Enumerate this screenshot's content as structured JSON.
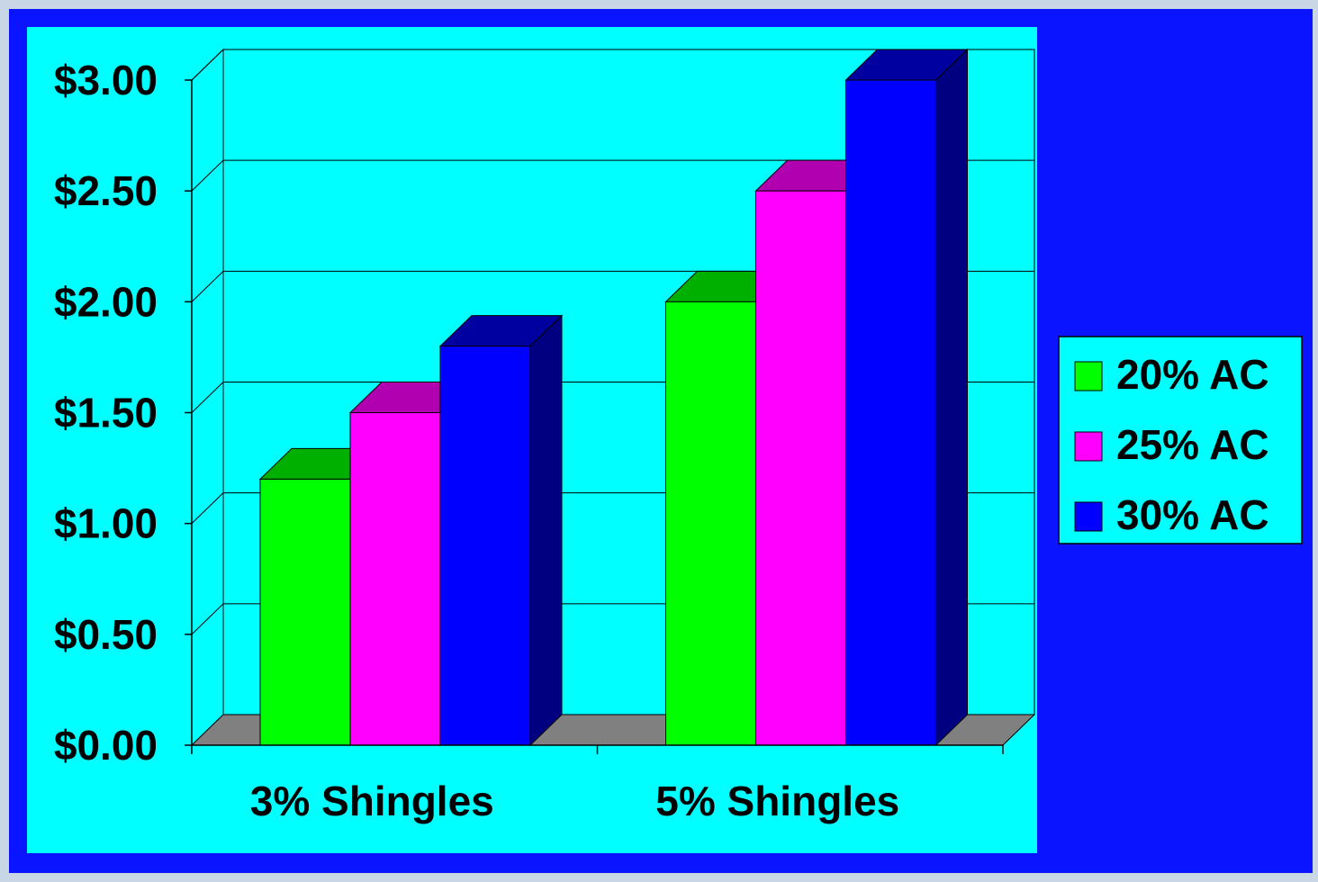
{
  "colors": {
    "frame": "#0a14ff",
    "plot_bg": "#00ffff",
    "floor": "#808080",
    "series_front": [
      "#00ff00",
      "#ff00ff",
      "#0000ff"
    ],
    "series_top": [
      "#00b000",
      "#b000b0",
      "#0000a0"
    ],
    "series_side": [
      "#008000",
      "#800080",
      "#000080"
    ]
  },
  "chart_data": {
    "type": "bar",
    "categories": [
      "3% Shingles",
      "5% Shingles"
    ],
    "series": [
      {
        "name": "20% AC",
        "values": [
          1.2,
          2.0
        ]
      },
      {
        "name": "25% AC",
        "values": [
          1.5,
          2.5
        ]
      },
      {
        "name": "30% AC",
        "values": [
          1.8,
          3.0
        ]
      }
    ],
    "ylim": [
      0,
      3
    ],
    "yticks": [
      {
        "value": 0,
        "label": "$0.00"
      },
      {
        "value": 0.5,
        "label": "$0.50"
      },
      {
        "value": 1.0,
        "label": "$1.00"
      },
      {
        "value": 1.5,
        "label": "$1.50"
      },
      {
        "value": 2.0,
        "label": "$2.00"
      },
      {
        "value": 2.5,
        "label": "$2.50"
      },
      {
        "value": 3.0,
        "label": "$3.00"
      }
    ],
    "grid": true,
    "legend": "right",
    "style": "3d-clustered-column"
  }
}
